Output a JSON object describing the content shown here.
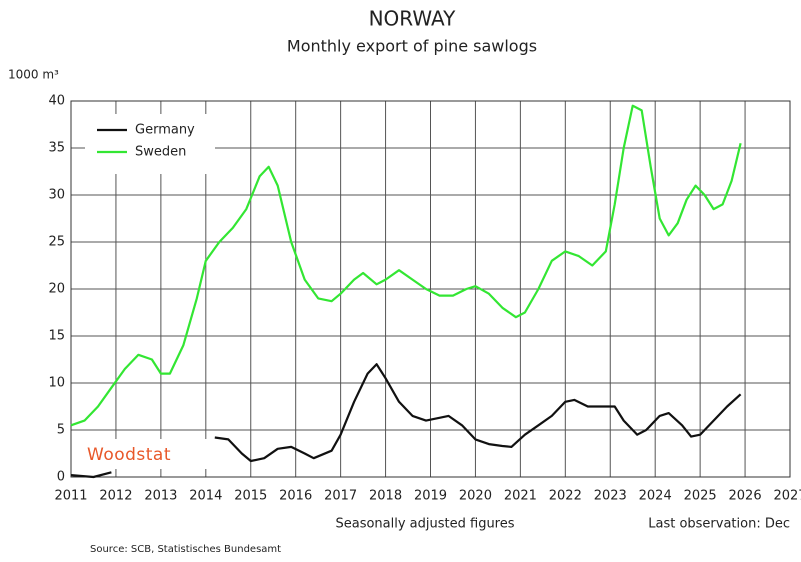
{
  "chart_data": {
    "type": "line",
    "title": "NORWAY",
    "subtitle": "Monthly export of pine sawlogs",
    "y_label": "1000 m³",
    "note_left": "Seasonally adjusted figures",
    "note_right": "Last observation: Dec",
    "source": "Source: SCB, Statistisches Bundesamt",
    "logo": "Woodstat",
    "xlim": [
      2011,
      2027
    ],
    "xticks": [
      2011,
      2012,
      2013,
      2014,
      2015,
      2016,
      2017,
      2018,
      2019,
      2020,
      2021,
      2022,
      2023,
      2024,
      2025,
      2026,
      2027
    ],
    "ylim": [
      0,
      40
    ],
    "yticks": [
      0,
      5,
      10,
      15,
      20,
      25,
      30,
      35,
      40
    ],
    "grid": true,
    "legend": "upper left",
    "series": [
      {
        "name": "Germany",
        "color": "#111111",
        "x": [
          2011.0,
          2011.5,
          2011.9,
          2012.1,
          2014.2,
          2014.5,
          2014.8,
          2015.0,
          2015.3,
          2015.6,
          2015.9,
          2016.2,
          2016.4,
          2016.8,
          2017.0,
          2017.3,
          2017.6,
          2017.8,
          2018.0,
          2018.3,
          2018.6,
          2018.9,
          2019.2,
          2019.4,
          2019.7,
          2020.0,
          2020.3,
          2020.6,
          2020.8,
          2021.1,
          2021.4,
          2021.7,
          2022.0,
          2022.2,
          2022.5,
          2022.8,
          2023.1,
          2023.3,
          2023.6,
          2023.8,
          2024.1,
          2024.3,
          2024.6,
          2024.8,
          2025.0,
          2025.3,
          2025.6,
          2025.9
        ],
        "values": [
          0.2,
          0,
          0.5,
          null,
          4.2,
          4,
          2.5,
          1.7,
          2,
          3,
          3.2,
          2.5,
          2,
          2.8,
          4.5,
          8,
          11,
          12,
          10.5,
          8,
          6.5,
          6,
          6.3,
          6.5,
          5.5,
          4,
          3.5,
          3.3,
          3.2,
          4.5,
          5.5,
          6.5,
          8,
          8.2,
          7.5,
          7.5,
          7.5,
          6,
          4.5,
          5,
          6.5,
          6.8,
          5.5,
          4.3,
          4.5,
          6,
          7.5,
          8.8
        ]
      },
      {
        "name": "Sweden",
        "color": "#33e633",
        "x": [
          2011.0,
          2011.3,
          2011.6,
          2011.9,
          2012.2,
          2012.5,
          2012.8,
          2013.0,
          2013.2,
          2013.5,
          2013.8,
          2014.0,
          2014.3,
          2014.6,
          2014.9,
          2015.2,
          2015.4,
          2015.6,
          2015.9,
          2016.2,
          2016.5,
          2016.8,
          2017.0,
          2017.3,
          2017.5,
          2017.8,
          2018.0,
          2018.3,
          2018.6,
          2018.9,
          2019.2,
          2019.5,
          2019.8,
          2020.0,
          2020.3,
          2020.6,
          2020.9,
          2021.1,
          2021.4,
          2021.7,
          2022.0,
          2022.3,
          2022.6,
          2022.9,
          2023.1,
          2023.3,
          2023.5,
          2023.7,
          2023.9,
          2024.1,
          2024.3,
          2024.5,
          2024.7,
          2024.9,
          2025.1,
          2025.3,
          2025.5,
          2025.7,
          2025.9
        ],
        "values": [
          5.5,
          6,
          7.5,
          9.5,
          11.5,
          13,
          12.5,
          11,
          11,
          14,
          19,
          23,
          25,
          26.5,
          28.5,
          32,
          33,
          31,
          25,
          21,
          19,
          18.7,
          19.5,
          21,
          21.7,
          20.5,
          21,
          22,
          21,
          20,
          19.3,
          19.3,
          20,
          20.3,
          19.5,
          18,
          17,
          17.5,
          20,
          23,
          24,
          23.5,
          22.5,
          24,
          29,
          35,
          39.5,
          39,
          33,
          27.5,
          25.7,
          27,
          29.5,
          31,
          30,
          28.5,
          29,
          31.5,
          35.5
        ]
      }
    ]
  }
}
